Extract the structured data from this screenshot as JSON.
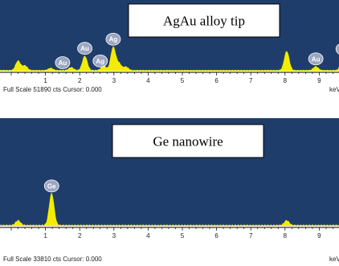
{
  "colors": {
    "plot_background": "#1f3d6a",
    "spectrum": "#f4ec00",
    "label_bubble": "#9aa6c2",
    "label_bubble_edge": "#ffffff",
    "caption_box": "#ffffff"
  },
  "chart_data": [
    {
      "type": "area",
      "caption": "AgAu alloy tip",
      "footer": "Full Scale 51890 cts Cursor: 0.000",
      "unit": "keV",
      "ticks": [
        "1",
        "2",
        "3",
        "4",
        "5",
        "6",
        "7",
        "8",
        "9"
      ],
      "xlim": [
        0,
        10
      ],
      "ylim": [
        0,
        51890
      ],
      "peaks": [
        {
          "x": 0.2,
          "y": 7000
        },
        {
          "x": 0.4,
          "y": 3500
        },
        {
          "x": 1.15,
          "y": 1600
        },
        {
          "x": 1.75,
          "y": 2200
        },
        {
          "x": 2.15,
          "y": 10500
        },
        {
          "x": 2.7,
          "y": 3500
        },
        {
          "x": 2.98,
          "y": 17000
        },
        {
          "x": 3.15,
          "y": 5000
        },
        {
          "x": 3.35,
          "y": 2600
        },
        {
          "x": 8.05,
          "y": 14000
        },
        {
          "x": 8.9,
          "y": 2800
        },
        {
          "x": 9.7,
          "y": 10000
        }
      ],
      "labels": [
        {
          "text": "Au",
          "x": 1.5
        },
        {
          "text": "Au",
          "x": 2.15
        },
        {
          "text": "Ag",
          "x": 2.6
        },
        {
          "text": "Ag",
          "x": 2.98
        },
        {
          "text": "Au",
          "x": 8.9
        },
        {
          "text": "Au",
          "x": 9.7
        }
      ]
    },
    {
      "type": "area",
      "caption": "Ge nanowire",
      "footer": "Full Scale 33810 cts Cursor: 0.000",
      "unit": "keV",
      "ticks": [
        "1",
        "2",
        "3",
        "4",
        "5",
        "6",
        "7",
        "8",
        "9"
      ],
      "xlim": [
        0,
        10
      ],
      "ylim": [
        0,
        33810
      ],
      "peaks": [
        {
          "x": 0.2,
          "y": 1500
        },
        {
          "x": 1.18,
          "y": 10000
        },
        {
          "x": 8.05,
          "y": 1500
        },
        {
          "x": 9.85,
          "y": 800
        }
      ],
      "labels": [
        {
          "text": "Ge",
          "x": 1.18
        }
      ]
    }
  ]
}
